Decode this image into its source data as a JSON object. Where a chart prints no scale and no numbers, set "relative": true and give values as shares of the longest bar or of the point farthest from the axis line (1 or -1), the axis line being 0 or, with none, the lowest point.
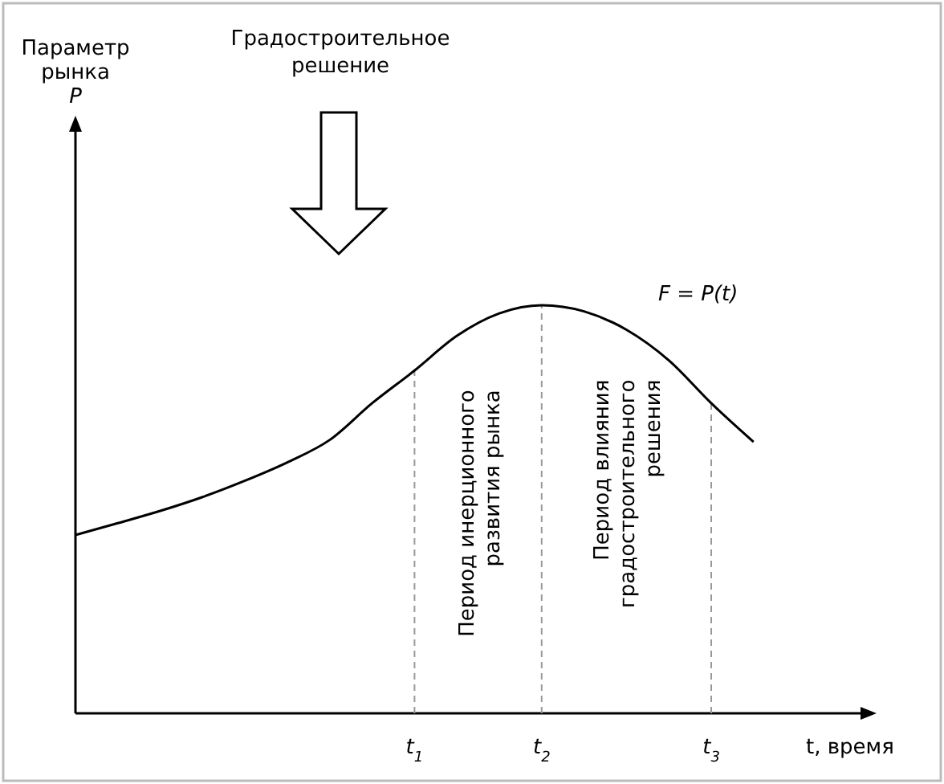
{
  "chart_data": {
    "type": "line",
    "relative": true,
    "xlabel": "t, время",
    "categories": [
      null,
      null,
      null,
      null,
      null,
      null,
      null,
      null,
      "t$_{1}$",
      null,
      null,
      "t$_{2}$",
      null,
      null,
      null,
      "t$_{3}$",
      null
    ],
    "series": [
      {
        "color": "#000000",
        "values": [
          0.437,
          0.466,
          0.496,
          0.53,
          0.57,
          0.615,
          0.67,
          0.76,
          0.84,
          0.925,
          0.98,
          1,
          0.985,
          0.94,
          0.865,
          0.76,
          0.665
        ]
      }
    ],
    "ref_lines": [
      {
        "axis": "x",
        "value": "t$_{1}$",
        "color": "#999999",
        "line_style": "dashed"
      },
      {
        "axis": "x",
        "value": "t$_{2}$",
        "color": "#999999",
        "line_style": "dashed"
      },
      {
        "axis": "x",
        "value": "t$_{3}$",
        "color": "#999999",
        "line_style": "dashed"
      }
    ],
    "annotations": [
      "Градостроительное решение",
      "F = P(t)",
      "Период инерционного развития рынка",
      "Период влияния градостроительного решения",
      "Параметр рынка P"
    ],
    "marker": "none",
    "line_style": "solid"
  }
}
